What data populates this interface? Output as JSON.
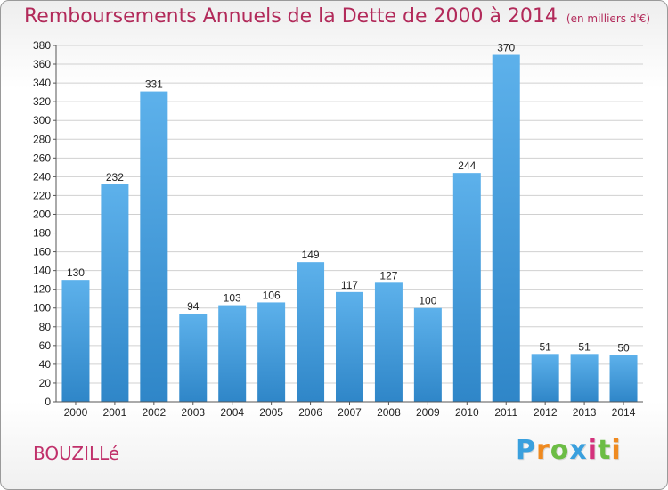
{
  "header": {
    "title": "Remboursements Annuels de la Dette de 2000 à 2014",
    "unit": "(en milliers d'€)"
  },
  "footer": {
    "place": "BOUZILLé",
    "logo": "Proxiti"
  },
  "colors": {
    "bar_top": "#5db1eb",
    "bar_bottom": "#2f86c8",
    "title": "#b22a5a",
    "grid": "#d0d0d0"
  },
  "chart_data": {
    "type": "bar",
    "title": "Remboursements Annuels de la Dette de 2000 à 2014",
    "ylabel": "(en milliers d'€)",
    "xlabel": "",
    "categories": [
      "2000",
      "2001",
      "2002",
      "2003",
      "2004",
      "2005",
      "2006",
      "2007",
      "2008",
      "2009",
      "2010",
      "2011",
      "2012",
      "2013",
      "2014"
    ],
    "values": [
      130,
      232,
      331,
      94,
      103,
      106,
      149,
      117,
      127,
      100,
      244,
      370,
      51,
      51,
      50
    ],
    "ylim": [
      0,
      380
    ],
    "yticks": [
      0,
      20,
      40,
      60,
      80,
      100,
      120,
      140,
      160,
      180,
      200,
      220,
      240,
      260,
      280,
      300,
      320,
      340,
      360,
      380
    ],
    "grid": true
  }
}
